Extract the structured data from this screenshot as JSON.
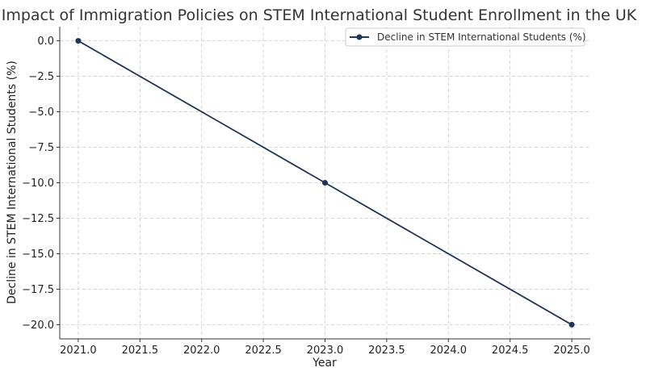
{
  "chart_data": {
    "type": "line",
    "title": "Impact of Immigration Policies on STEM International Student Enrollment in the UK",
    "xlabel": "Year",
    "ylabel": "Decline in STEM International Students (%)",
    "xlim": [
      2020.85,
      2025.15
    ],
    "ylim": [
      -21.0,
      1.0
    ],
    "x_ticks": [
      2021.0,
      2021.5,
      2022.0,
      2022.5,
      2023.0,
      2023.5,
      2024.0,
      2024.5,
      2025.0
    ],
    "x_tick_labels": [
      "2021.0",
      "2021.5",
      "2022.0",
      "2022.5",
      "2023.0",
      "2023.5",
      "2024.0",
      "2024.5",
      "2025.0"
    ],
    "y_ticks": [
      0.0,
      -2.5,
      -5.0,
      -7.5,
      -10.0,
      -12.5,
      -15.0,
      -17.5,
      -20.0
    ],
    "y_tick_labels": [
      "0.0",
      "−2.5",
      "−5.0",
      "−7.5",
      "−10.0",
      "−12.5",
      "−15.0",
      "−17.5",
      "−20.0"
    ],
    "grid": true,
    "legend_position": "top-right",
    "series": [
      {
        "name": "Decline in STEM International Students (%)",
        "color": "#1f3558",
        "x": [
          2021,
          2023,
          2025
        ],
        "y": [
          0,
          -10,
          -20
        ]
      }
    ]
  }
}
